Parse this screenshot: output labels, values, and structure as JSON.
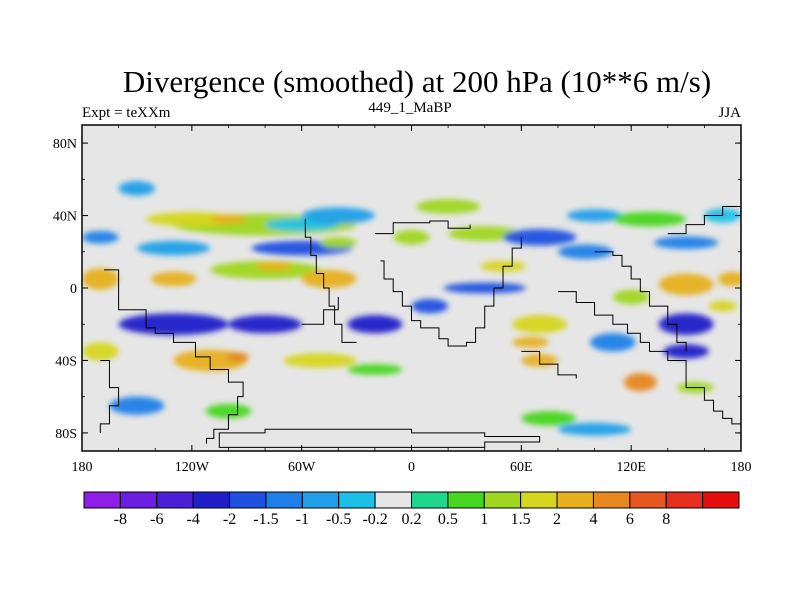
{
  "chart_data": {
    "type": "heatmap",
    "title": "Divergence (smoothed) at 200 hPa (10**6 m/s)",
    "left_label": "Expt = teXXm",
    "center_label": "449_1_MaBP",
    "right_label": "JJA",
    "x_ticks": [
      {
        "value": -180,
        "label": "180"
      },
      {
        "value": -120,
        "label": "120W"
      },
      {
        "value": -60,
        "label": "60W"
      },
      {
        "value": 0,
        "label": "0"
      },
      {
        "value": 60,
        "label": "60E"
      },
      {
        "value": 120,
        "label": "120E"
      },
      {
        "value": 180,
        "label": "180"
      }
    ],
    "y_ticks": [
      {
        "value": 80,
        "label": "80N"
      },
      {
        "value": 40,
        "label": "40N"
      },
      {
        "value": 0,
        "label": "0"
      },
      {
        "value": -40,
        "label": "40S"
      },
      {
        "value": -80,
        "label": "80S"
      }
    ],
    "xlim": [
      -180,
      180
    ],
    "ylim": [
      -90,
      90
    ],
    "colorbar": {
      "colors": [
        "#8f1fe6",
        "#6b1fe0",
        "#4a1fd6",
        "#1f1fc9",
        "#1f4fe0",
        "#1f7fe8",
        "#1f9fe8",
        "#1fc0e8",
        "#e6e6e6",
        "#1fd68f",
        "#47d61f",
        "#9fd61f",
        "#d6d61f",
        "#e6b01f",
        "#e6871f",
        "#e6561f",
        "#e62f1f",
        "#e60d0d"
      ],
      "labels": [
        "-8",
        "-6",
        "-4",
        "-2",
        "-1.5",
        "-1",
        "-0.5",
        "-0.2",
        "0.2",
        "0.5",
        "1",
        "1.5",
        "2",
        "4",
        "6",
        "8"
      ]
    },
    "features": [
      {
        "lon": -150,
        "lat": 55,
        "w": 20,
        "h": 8,
        "val": -0.6
      },
      {
        "lon": -80,
        "lat": 35,
        "w": 100,
        "h": 12,
        "val": 1.3
      },
      {
        "lon": -120,
        "lat": 38,
        "w": 50,
        "h": 8,
        "val": 1.8
      },
      {
        "lon": -100,
        "lat": 38,
        "w": 20,
        "h": 5,
        "val": 2.3
      },
      {
        "lon": -60,
        "lat": 35,
        "w": 40,
        "h": 7,
        "val": -0.5
      },
      {
        "lon": -40,
        "lat": 40,
        "w": 40,
        "h": 9,
        "val": -0.6
      },
      {
        "lon": 20,
        "lat": 45,
        "w": 35,
        "h": 8,
        "val": 1.1
      },
      {
        "lon": 40,
        "lat": 30,
        "w": 40,
        "h": 8,
        "val": 1.3
      },
      {
        "lon": 100,
        "lat": 40,
        "w": 30,
        "h": 7,
        "val": -0.6
      },
      {
        "lon": 130,
        "lat": 38,
        "w": 40,
        "h": 8,
        "val": 0.8
      },
      {
        "lon": 170,
        "lat": 40,
        "w": 20,
        "h": 8,
        "val": -0.5
      },
      {
        "lon": -170,
        "lat": 28,
        "w": 20,
        "h": 7,
        "val": -1.2
      },
      {
        "lon": -130,
        "lat": 22,
        "w": 40,
        "h": 8,
        "val": -0.8
      },
      {
        "lon": -60,
        "lat": 22,
        "w": 55,
        "h": 8,
        "val": -1.8
      },
      {
        "lon": -80,
        "lat": 10,
        "w": 60,
        "h": 10,
        "val": 1.3
      },
      {
        "lon": -75,
        "lat": 12,
        "w": 20,
        "h": 5,
        "val": 3
      },
      {
        "lon": -40,
        "lat": 25,
        "w": 20,
        "h": 6,
        "val": 1.2
      },
      {
        "lon": -170,
        "lat": 5,
        "w": 20,
        "h": 12,
        "val": 3.5
      },
      {
        "lon": -130,
        "lat": 5,
        "w": 25,
        "h": 8,
        "val": 2.2
      },
      {
        "lon": -45,
        "lat": 5,
        "w": 30,
        "h": 10,
        "val": 2.5
      },
      {
        "lon": 0,
        "lat": 28,
        "w": 20,
        "h": 8,
        "val": 1.0
      },
      {
        "lon": 50,
        "lat": 12,
        "w": 25,
        "h": 6,
        "val": 1.8
      },
      {
        "lon": 70,
        "lat": 28,
        "w": 40,
        "h": 9,
        "val": -1.8
      },
      {
        "lon": 95,
        "lat": 20,
        "w": 30,
        "h": 8,
        "val": -1.5
      },
      {
        "lon": 40,
        "lat": 0,
        "w": 45,
        "h": 6,
        "val": -1.6
      },
      {
        "lon": 150,
        "lat": 25,
        "w": 35,
        "h": 7,
        "val": -1.2
      },
      {
        "lon": 150,
        "lat": 2,
        "w": 30,
        "h": 12,
        "val": 3.5
      },
      {
        "lon": 175,
        "lat": 5,
        "w": 15,
        "h": 8,
        "val": 3
      },
      {
        "lon": 120,
        "lat": -5,
        "w": 20,
        "h": 8,
        "val": 1.2
      },
      {
        "lon": -130,
        "lat": -20,
        "w": 60,
        "h": 12,
        "val": -3.5
      },
      {
        "lon": -80,
        "lat": -20,
        "w": 40,
        "h": 10,
        "val": -2.5
      },
      {
        "lon": -20,
        "lat": -20,
        "w": 30,
        "h": 10,
        "val": -2.2
      },
      {
        "lon": 10,
        "lat": -10,
        "w": 20,
        "h": 8,
        "val": -2
      },
      {
        "lon": 150,
        "lat": -20,
        "w": 30,
        "h": 12,
        "val": -2.5
      },
      {
        "lon": 170,
        "lat": -10,
        "w": 15,
        "h": 6,
        "val": 1.5
      },
      {
        "lon": 70,
        "lat": -20,
        "w": 30,
        "h": 10,
        "val": 1.6
      },
      {
        "lon": 65,
        "lat": -30,
        "w": 20,
        "h": 6,
        "val": 2.4
      },
      {
        "lon": 110,
        "lat": -30,
        "w": 25,
        "h": 10,
        "val": -1.2
      },
      {
        "lon": 150,
        "lat": -35,
        "w": 25,
        "h": 8,
        "val": -2.8
      },
      {
        "lon": -110,
        "lat": -40,
        "w": 40,
        "h": 12,
        "val": 2.2
      },
      {
        "lon": -95,
        "lat": -38,
        "w": 12,
        "h": 5,
        "val": 4.5
      },
      {
        "lon": -50,
        "lat": -40,
        "w": 40,
        "h": 8,
        "val": 1.5
      },
      {
        "lon": -170,
        "lat": -35,
        "w": 20,
        "h": 10,
        "val": 1.8
      },
      {
        "lon": -20,
        "lat": -45,
        "w": 30,
        "h": 6,
        "val": 0.9
      },
      {
        "lon": 70,
        "lat": -40,
        "w": 20,
        "h": 7,
        "val": 2
      },
      {
        "lon": 125,
        "lat": -52,
        "w": 18,
        "h": 10,
        "val": 4.5
      },
      {
        "lon": 155,
        "lat": -55,
        "w": 20,
        "h": 6,
        "val": 1.2
      },
      {
        "lon": -150,
        "lat": -65,
        "w": 30,
        "h": 10,
        "val": -1.3
      },
      {
        "lon": 75,
        "lat": -72,
        "w": 30,
        "h": 8,
        "val": 0.9
      },
      {
        "lon": 100,
        "lat": -78,
        "w": 40,
        "h": 7,
        "val": -0.7
      },
      {
        "lon": -100,
        "lat": -68,
        "w": 25,
        "h": 8,
        "val": 0.9
      }
    ],
    "coastline": [
      [
        [
          -168,
          10
        ],
        [
          -160,
          5
        ],
        [
          -160,
          -12
        ],
        [
          -145,
          -22
        ],
        [
          -140,
          -25
        ],
        [
          -130,
          -30
        ],
        [
          -118,
          -38
        ],
        [
          -110,
          -45
        ],
        [
          -100,
          -52
        ],
        [
          -92,
          -60
        ],
        [
          -95,
          -70
        ],
        [
          -100,
          -78
        ],
        [
          -108,
          -83
        ],
        [
          -112,
          -86
        ]
      ],
      [
        [
          -30,
          -30
        ],
        [
          -38,
          -20
        ],
        [
          -42,
          -10
        ],
        [
          -45,
          0
        ],
        [
          -48,
          8
        ],
        [
          -52,
          18
        ],
        [
          -55,
          28
        ],
        [
          -58,
          38
        ]
      ],
      [
        [
          -20,
          30
        ],
        [
          -10,
          36
        ],
        [
          0,
          36
        ],
        [
          10,
          37
        ],
        [
          20,
          33
        ],
        [
          28,
          33
        ],
        [
          32,
          35
        ]
      ],
      [
        [
          -17,
          15
        ],
        [
          -15,
          5
        ],
        [
          -10,
          -2
        ],
        [
          -5,
          -10
        ],
        [
          0,
          -18
        ],
        [
          5,
          -22
        ],
        [
          15,
          -28
        ],
        [
          20,
          -32
        ],
        [
          30,
          -30
        ],
        [
          35,
          -22
        ],
        [
          40,
          -10
        ],
        [
          45,
          0
        ]
      ],
      [
        [
          45,
          0
        ],
        [
          50,
          12
        ],
        [
          55,
          22
        ],
        [
          60,
          28
        ]
      ],
      [
        [
          80,
          -2
        ],
        [
          90,
          -8
        ],
        [
          100,
          -15
        ],
        [
          110,
          -20
        ],
        [
          118,
          -25
        ],
        [
          125,
          -30
        ],
        [
          130,
          -35
        ],
        [
          140,
          -40
        ],
        [
          150,
          -55
        ],
        [
          160,
          -62
        ],
        [
          165,
          -68
        ],
        [
          170,
          -72
        ],
        [
          175,
          -75
        ],
        [
          180,
          -78
        ]
      ],
      [
        [
          100,
          20
        ],
        [
          110,
          18
        ],
        [
          115,
          12
        ],
        [
          120,
          5
        ],
        [
          125,
          -2
        ],
        [
          130,
          -10
        ],
        [
          140,
          -20
        ],
        [
          145,
          -30
        ],
        [
          150,
          -35
        ]
      ],
      [
        [
          140,
          30
        ],
        [
          150,
          35
        ],
        [
          160,
          40
        ],
        [
          170,
          45
        ],
        [
          180,
          50
        ]
      ],
      [
        [
          -60,
          -20
        ],
        [
          -48,
          -12
        ],
        [
          -40,
          -5
        ]
      ],
      [
        [
          60,
          -35
        ],
        [
          70,
          -42
        ],
        [
          80,
          -48
        ],
        [
          90,
          -50
        ]
      ],
      [
        [
          -170,
          -40
        ],
        [
          -165,
          -55
        ],
        [
          -160,
          -65
        ],
        [
          -165,
          -75
        ],
        [
          -170,
          -80
        ]
      ]
    ],
    "antarctica": [
      [
        -105,
        -80
      ],
      [
        -80,
        -78
      ],
      [
        -40,
        -78
      ],
      [
        0,
        -80
      ],
      [
        40,
        -82
      ],
      [
        70,
        -85
      ],
      [
        40,
        -88
      ],
      [
        0,
        -88
      ],
      [
        -40,
        -88
      ],
      [
        -80,
        -88
      ],
      [
        -105,
        -86
      ]
    ]
  }
}
